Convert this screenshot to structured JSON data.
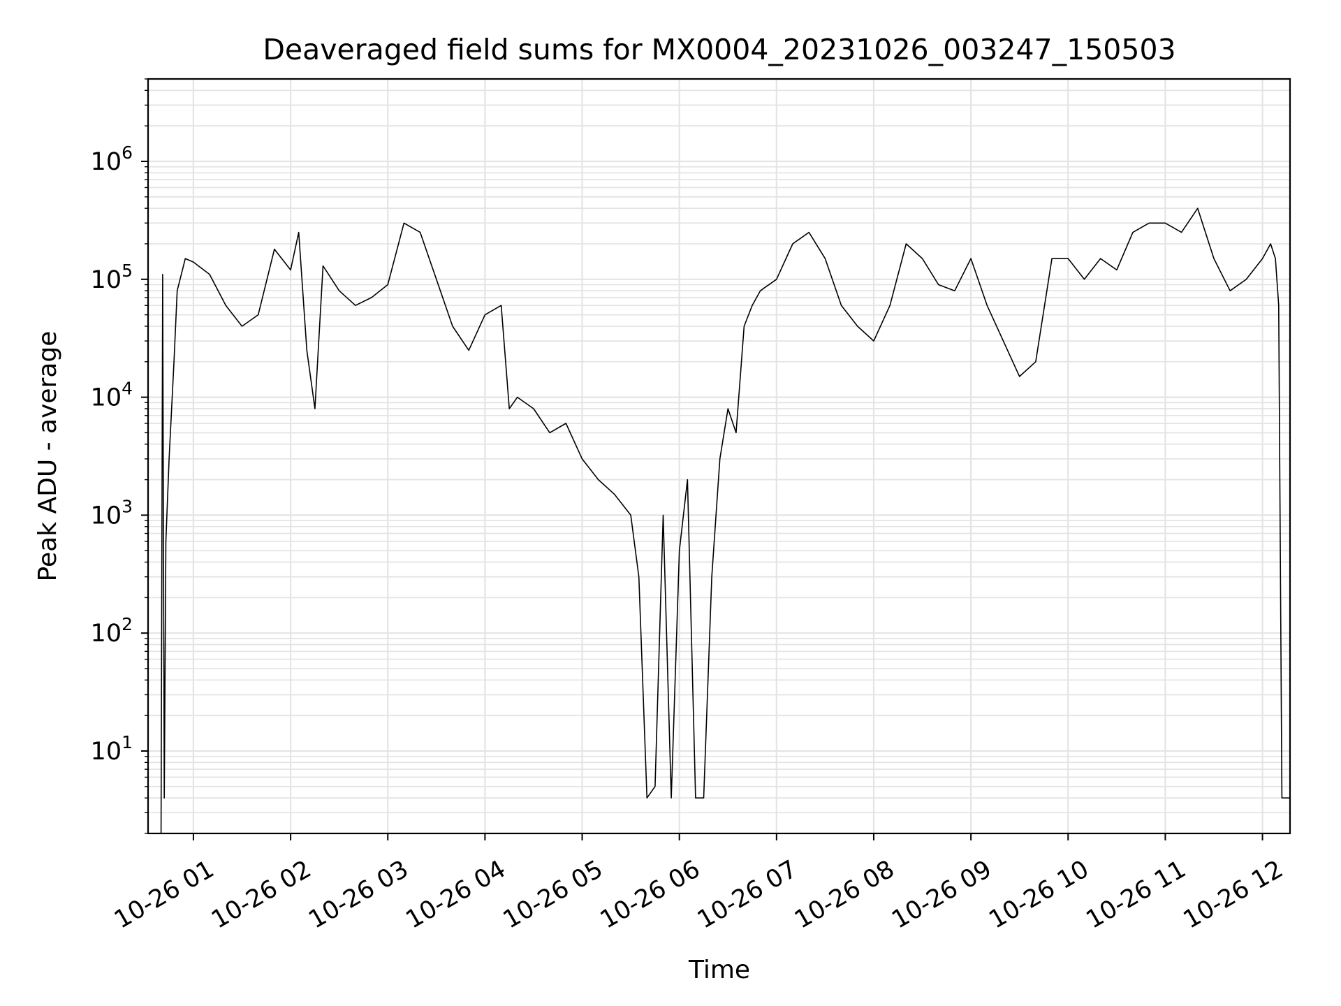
{
  "chart_data": {
    "type": "line",
    "title": "Deaveraged field sums for MX0004_20231026_003247_150503",
    "xlabel": "Time",
    "ylabel": "Peak ADU - average",
    "y_scale": "log",
    "ylim": [
      2,
      5000000
    ],
    "xlim": [
      "10-26 00:32",
      "10-26 12:17"
    ],
    "grid": true,
    "line_color": "#000000",
    "grid_color": "#e4e4e4",
    "x_ticks": [
      "10-26 01",
      "10-26 02",
      "10-26 03",
      "10-26 04",
      "10-26 05",
      "10-26 06",
      "10-26 07",
      "10-26 08",
      "10-26 09",
      "10-26 10",
      "10-26 11",
      "10-26 12"
    ],
    "y_ticks": [
      {
        "base": "10",
        "exp": "1"
      },
      {
        "base": "10",
        "exp": "2"
      },
      {
        "base": "10",
        "exp": "3"
      },
      {
        "base": "10",
        "exp": "4"
      },
      {
        "base": "10",
        "exp": "5"
      },
      {
        "base": "10",
        "exp": "6"
      }
    ],
    "x": [
      "10-26 00:40",
      "10-26 00:41",
      "10-26 00:42",
      "10-26 00:43",
      "10-26 00:45",
      "10-26 00:48",
      "10-26 00:50",
      "10-26 00:55",
      "10-26 01:00",
      "10-26 01:10",
      "10-26 01:20",
      "10-26 01:30",
      "10-26 01:40",
      "10-26 01:50",
      "10-26 02:00",
      "10-26 02:05",
      "10-26 02:10",
      "10-26 02:15",
      "10-26 02:20",
      "10-26 02:30",
      "10-26 02:40",
      "10-26 02:50",
      "10-26 03:00",
      "10-26 03:10",
      "10-26 03:20",
      "10-26 03:30",
      "10-26 03:40",
      "10-26 03:50",
      "10-26 04:00",
      "10-26 04:10",
      "10-26 04:15",
      "10-26 04:20",
      "10-26 04:30",
      "10-26 04:40",
      "10-26 04:50",
      "10-26 05:00",
      "10-26 05:10",
      "10-26 05:20",
      "10-26 05:30",
      "10-26 05:35",
      "10-26 05:40",
      "10-26 05:45",
      "10-26 05:50",
      "10-26 05:55",
      "10-26 06:00",
      "10-26 06:05",
      "10-26 06:10",
      "10-26 06:15",
      "10-26 06:20",
      "10-26 06:25",
      "10-26 06:30",
      "10-26 06:35",
      "10-26 06:40",
      "10-26 06:45",
      "10-26 06:50",
      "10-26 07:00",
      "10-26 07:10",
      "10-26 07:20",
      "10-26 07:30",
      "10-26 07:40",
      "10-26 07:50",
      "10-26 08:00",
      "10-26 08:10",
      "10-26 08:20",
      "10-26 08:30",
      "10-26 08:40",
      "10-26 08:50",
      "10-26 09:00",
      "10-26 09:10",
      "10-26 09:20",
      "10-26 09:30",
      "10-26 09:40",
      "10-26 09:50",
      "10-26 10:00",
      "10-26 10:10",
      "10-26 10:20",
      "10-26 10:30",
      "10-26 10:40",
      "10-26 10:50",
      "10-26 11:00",
      "10-26 11:10",
      "10-26 11:20",
      "10-26 11:30",
      "10-26 11:40",
      "10-26 11:50",
      "10-26 12:00",
      "10-26 12:05",
      "10-26 12:08",
      "10-26 12:10",
      "10-26 12:12",
      "10-26 12:17"
    ],
    "series": [
      {
        "values": [
          2,
          110000,
          4,
          600,
          3000,
          20000,
          80000,
          150000,
          140000,
          110000,
          60000,
          40000,
          50000,
          180000,
          120000,
          250000,
          25000,
          8000,
          130000,
          80000,
          60000,
          70000,
          90000,
          300000,
          250000,
          100000,
          40000,
          25000,
          50000,
          60000,
          8000,
          10000,
          8000,
          5000,
          6000,
          3000,
          2000,
          1500,
          1000,
          300,
          4,
          5,
          1000,
          4,
          500,
          2000,
          4,
          4,
          300,
          3000,
          8000,
          5000,
          40000,
          60000,
          80000,
          100000,
          200000,
          250000,
          150000,
          60000,
          40000,
          30000,
          60000,
          200000,
          150000,
          90000,
          80000,
          150000,
          60000,
          30000,
          15000,
          20000,
          150000,
          150000,
          100000,
          150000,
          120000,
          250000,
          300000,
          300000,
          250000,
          400000,
          150000,
          80000,
          100000,
          150000,
          200000,
          150000,
          60000,
          4,
          4
        ]
      }
    ]
  }
}
